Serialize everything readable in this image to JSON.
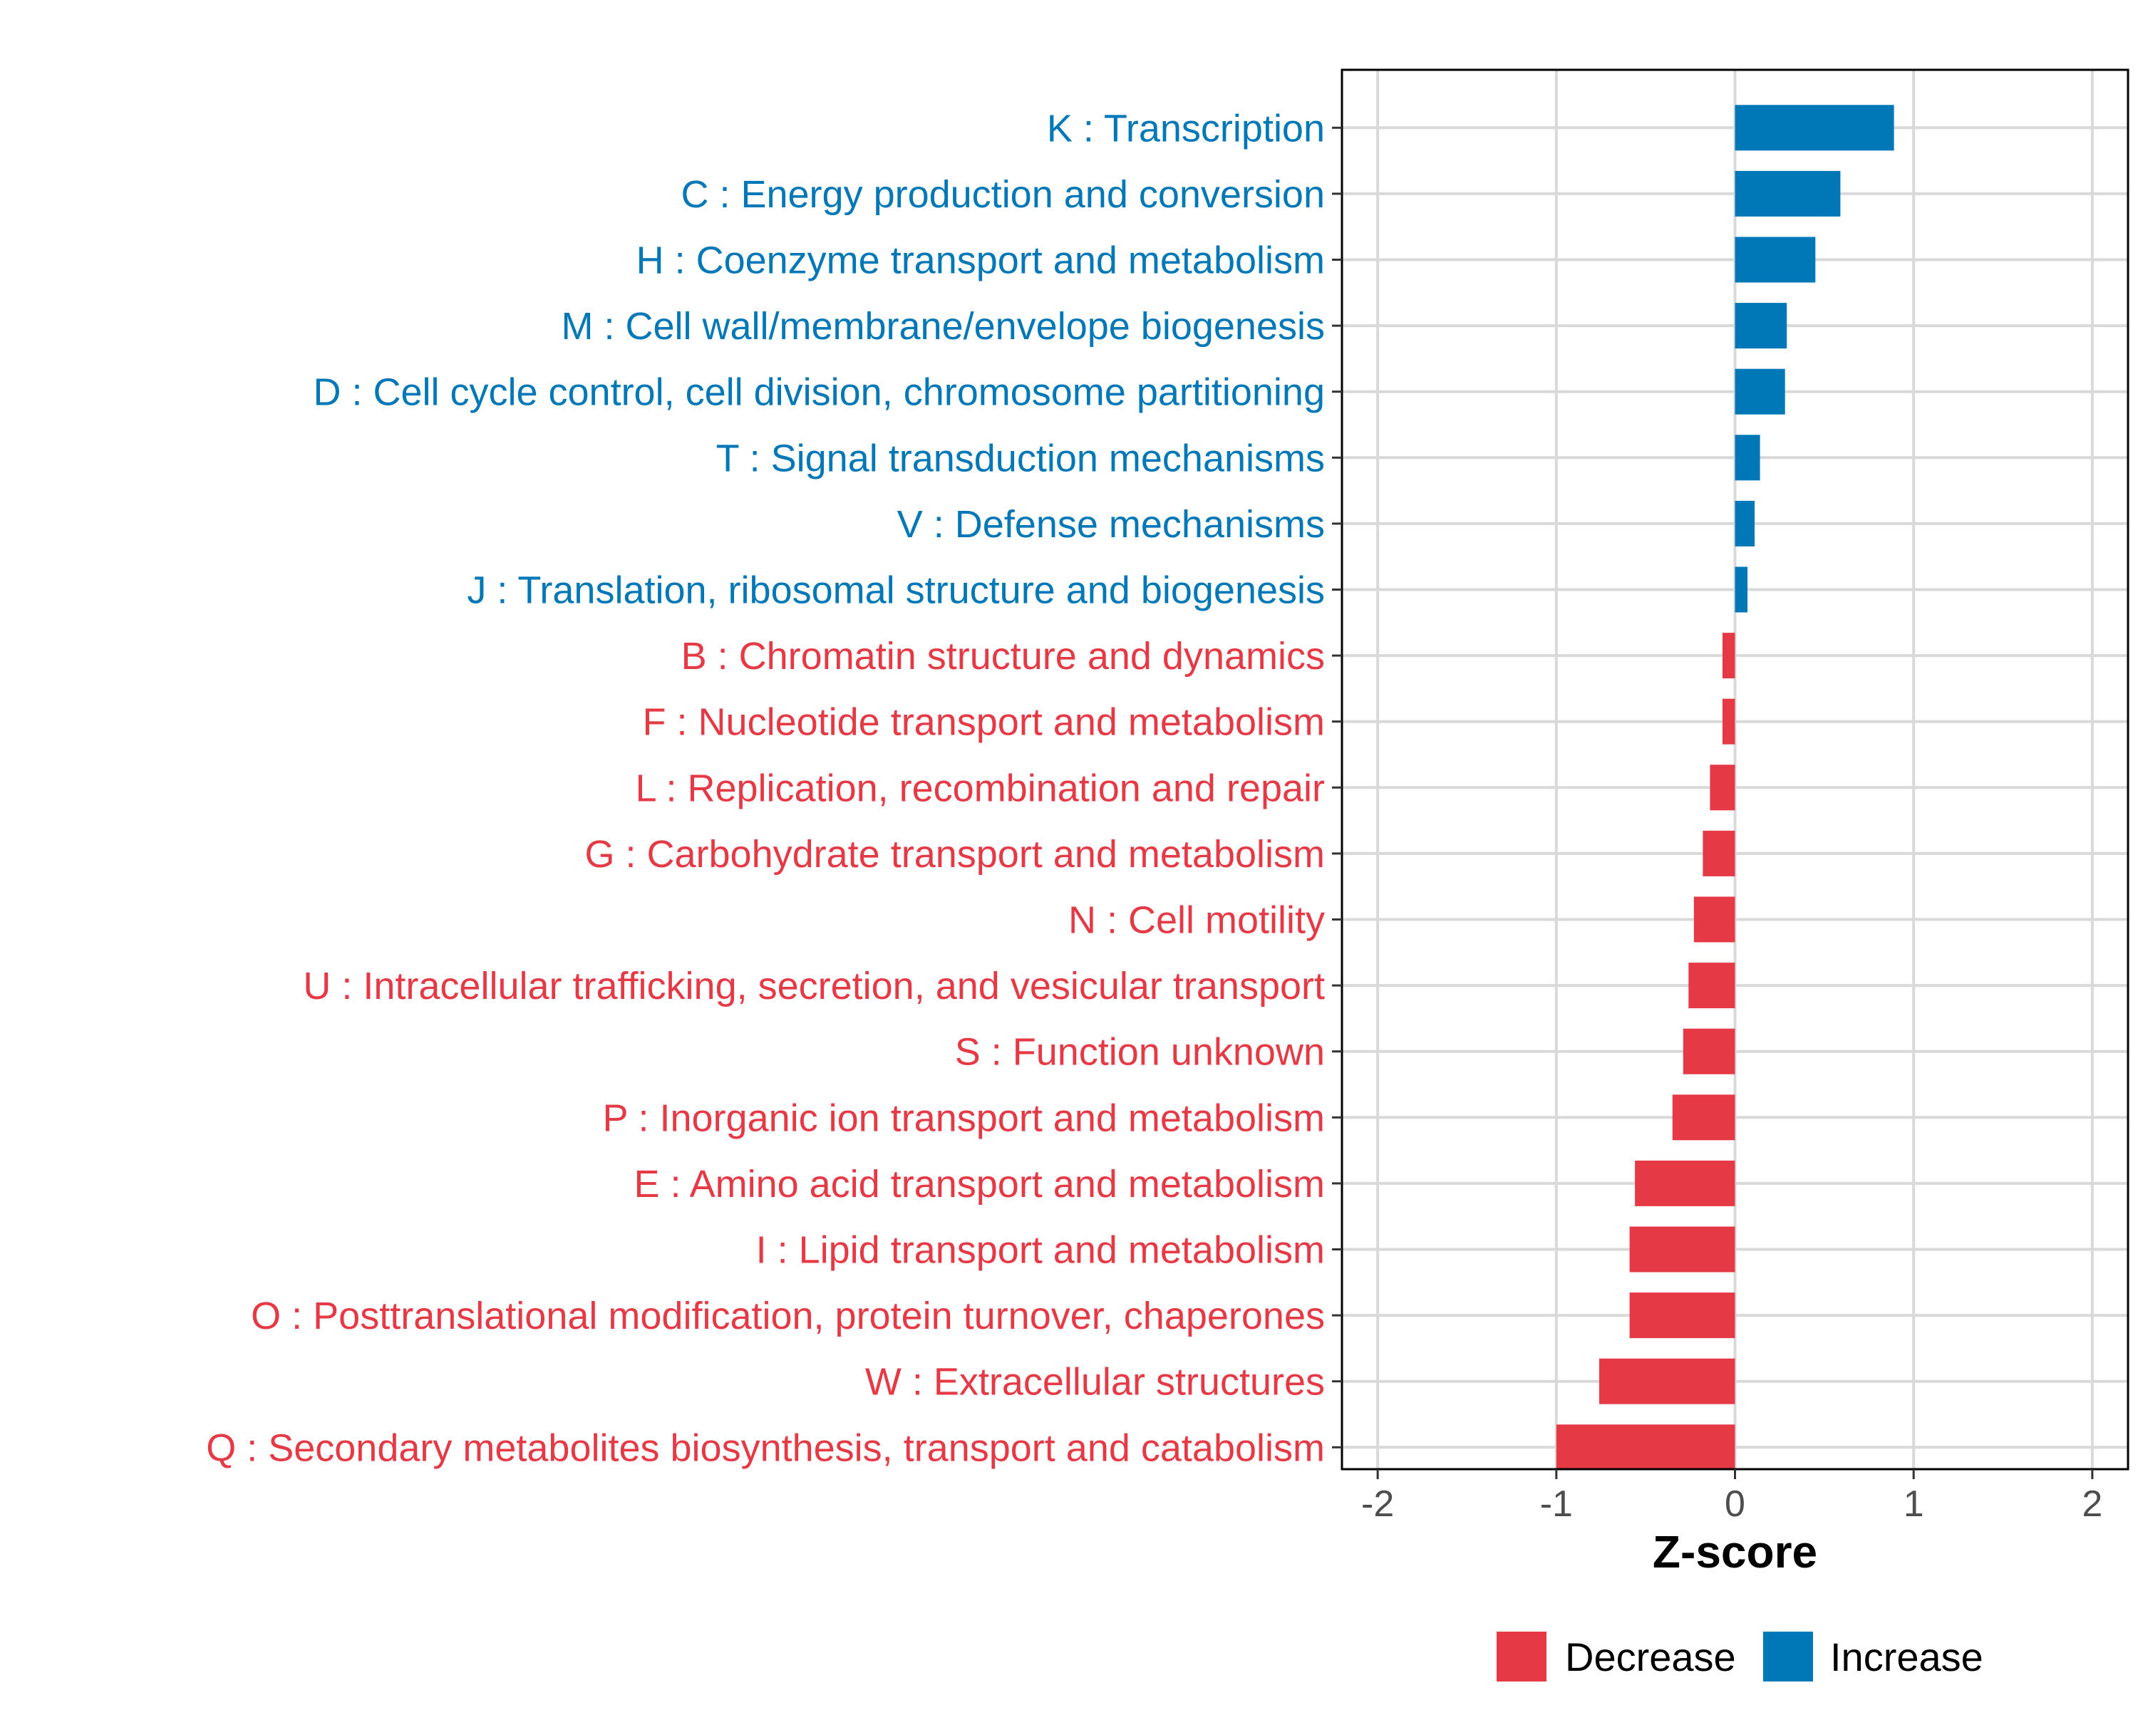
{
  "chart_data": {
    "type": "bar",
    "orientation": "horizontal",
    "title": "",
    "xlabel": "Z-score",
    "ylabel": "",
    "xlim": [
      -2.2,
      2.2
    ],
    "x_ticks": [
      {
        "value": -2,
        "label": "-2"
      },
      {
        "value": -1,
        "label": "-1"
      },
      {
        "value": 0,
        "label": "0"
      },
      {
        "value": 1,
        "label": "1"
      },
      {
        "value": 2,
        "label": "2"
      }
    ],
    "grid": true,
    "colors": {
      "Decrease": "#e63946",
      "Increase": "#0077b6"
    },
    "legend": {
      "position": "bottom",
      "entries": [
        {
          "name": "Decrease",
          "color": "#e63946"
        },
        {
          "name": "Increase",
          "color": "#0077b6"
        }
      ]
    },
    "bars": [
      {
        "label": "K : Transcription",
        "value": 0.89,
        "group": "Increase"
      },
      {
        "label": "C : Energy production and conversion",
        "value": 0.59,
        "group": "Increase"
      },
      {
        "label": "H : Coenzyme transport and metabolism",
        "value": 0.45,
        "group": "Increase"
      },
      {
        "label": "M : Cell wall/membrane/envelope biogenesis",
        "value": 0.29,
        "group": "Increase"
      },
      {
        "label": "D : Cell cycle control, cell division, chromosome partitioning",
        "value": 0.28,
        "group": "Increase"
      },
      {
        "label": "T : Signal transduction mechanisms",
        "value": 0.14,
        "group": "Increase"
      },
      {
        "label": "V : Defense mechanisms",
        "value": 0.11,
        "group": "Increase"
      },
      {
        "label": "J : Translation, ribosomal structure and biogenesis",
        "value": 0.07,
        "group": "Increase"
      },
      {
        "label": "B : Chromatin structure and dynamics",
        "value": -0.07,
        "group": "Decrease"
      },
      {
        "label": "F : Nucleotide transport and metabolism",
        "value": -0.07,
        "group": "Decrease"
      },
      {
        "label": "L : Replication, recombination and repair",
        "value": -0.14,
        "group": "Decrease"
      },
      {
        "label": "G : Carbohydrate transport and metabolism",
        "value": -0.18,
        "group": "Decrease"
      },
      {
        "label": "N : Cell motility",
        "value": -0.23,
        "group": "Decrease"
      },
      {
        "label": "U : Intracellular trafficking, secretion, and vesicular transport",
        "value": -0.26,
        "group": "Decrease"
      },
      {
        "label": "S : Function unknown",
        "value": -0.29,
        "group": "Decrease"
      },
      {
        "label": "P : Inorganic ion transport and metabolism",
        "value": -0.35,
        "group": "Decrease"
      },
      {
        "label": "E : Amino acid transport and metabolism",
        "value": -0.56,
        "group": "Decrease"
      },
      {
        "label": "I : Lipid transport and metabolism",
        "value": -0.59,
        "group": "Decrease"
      },
      {
        "label": "O : Posttranslational modification, protein turnover, chaperones",
        "value": -0.59,
        "group": "Decrease"
      },
      {
        "label": "W : Extracellular structures",
        "value": -0.76,
        "group": "Decrease"
      },
      {
        "label": "Q : Secondary metabolites biosynthesis, transport and catabolism",
        "value": -1.0,
        "group": "Decrease"
      }
    ]
  }
}
